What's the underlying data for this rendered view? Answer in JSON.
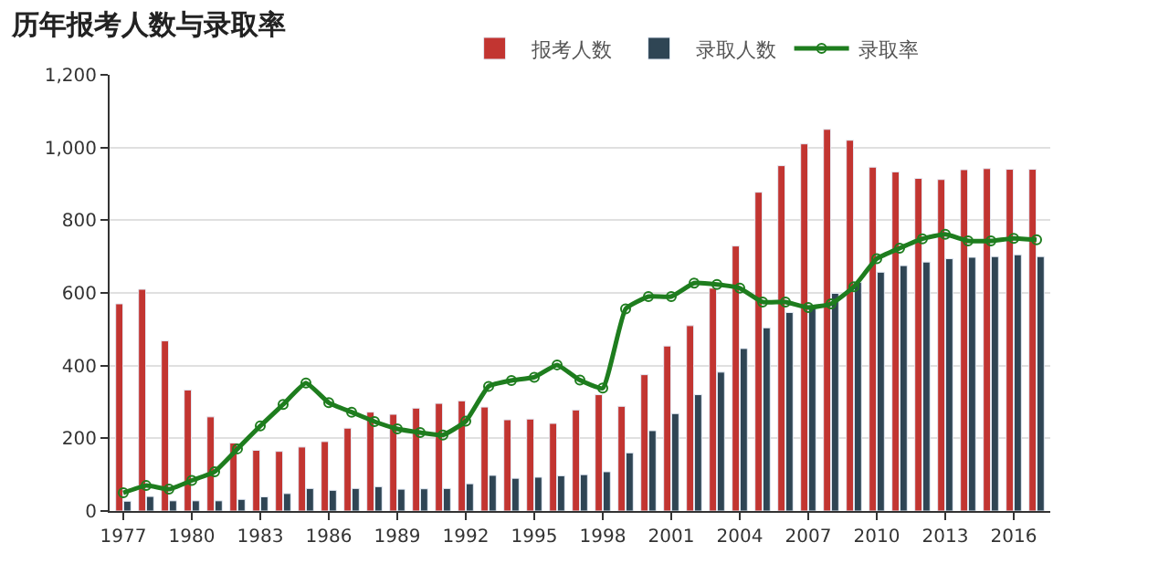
{
  "chart_data": {
    "type": "bar",
    "title": "历年报考人数与录取率",
    "categories": [
      "1977",
      null,
      null,
      "1980",
      null,
      null,
      "1983",
      null,
      null,
      "1986",
      null,
      null,
      "1989",
      null,
      null,
      "1992",
      null,
      null,
      "1995",
      null,
      null,
      "1998",
      null,
      null,
      "2001",
      null,
      null,
      "2004",
      null,
      null,
      "2007",
      null,
      null,
      "2010",
      null,
      null,
      "2013",
      null,
      null,
      "2016",
      null
    ],
    "series": [
      {
        "name": "报考人数",
        "color": "#c23531",
        "values": [
          570,
          610,
          468,
          333,
          259,
          187,
          167,
          164,
          176,
          191,
          228,
          272,
          266,
          283,
          296,
          303,
          286,
          251,
          253,
          241,
          278,
          320,
          288,
          375,
          454,
          510,
          613,
          729,
          877,
          950,
          1010,
          1050,
          1020,
          946,
          933,
          915,
          912,
          939,
          942,
          940,
          940
        ]
      },
      {
        "name": "录取人数",
        "color": "#2f4554",
        "values": [
          27,
          40,
          28,
          28,
          28,
          32,
          39,
          48,
          62,
          57,
          62,
          67,
          60,
          61,
          62,
          75,
          98,
          90,
          93,
          97,
          100,
          108,
          160,
          221,
          268,
          320,
          382,
          447,
          504,
          546,
          566,
          599,
          629,
          657,
          675,
          685,
          694,
          698,
          700,
          705,
          700
        ]
      },
      {
        "name": "录取率",
        "type": "line",
        "color": "#1e7d1e",
        "marker": "circle",
        "values": [
          50,
          70,
          60,
          84,
          108,
          171,
          234,
          293,
          352,
          298,
          272,
          246,
          226,
          216,
          209,
          247,
          343,
          359,
          368,
          402,
          360,
          338,
          556,
          590,
          590,
          627,
          623,
          613,
          575,
          575,
          560,
          570,
          617,
          694,
          723,
          749,
          761,
          743,
          743,
          750,
          746
        ]
      }
    ],
    "ylim": [
      0,
      1200
    ],
    "yticks": [
      0,
      {
        "value": 200,
        "label": "200"
      },
      {
        "value": 400,
        "label": "400"
      },
      {
        "value": 600,
        "label": "600"
      },
      {
        "value": 800,
        "label": "800"
      },
      {
        "value": 1000,
        "label": "1,000"
      },
      {
        "value": 1200,
        "label": "1,200"
      }
    ],
    "grid": "y",
    "legend": "top"
  }
}
